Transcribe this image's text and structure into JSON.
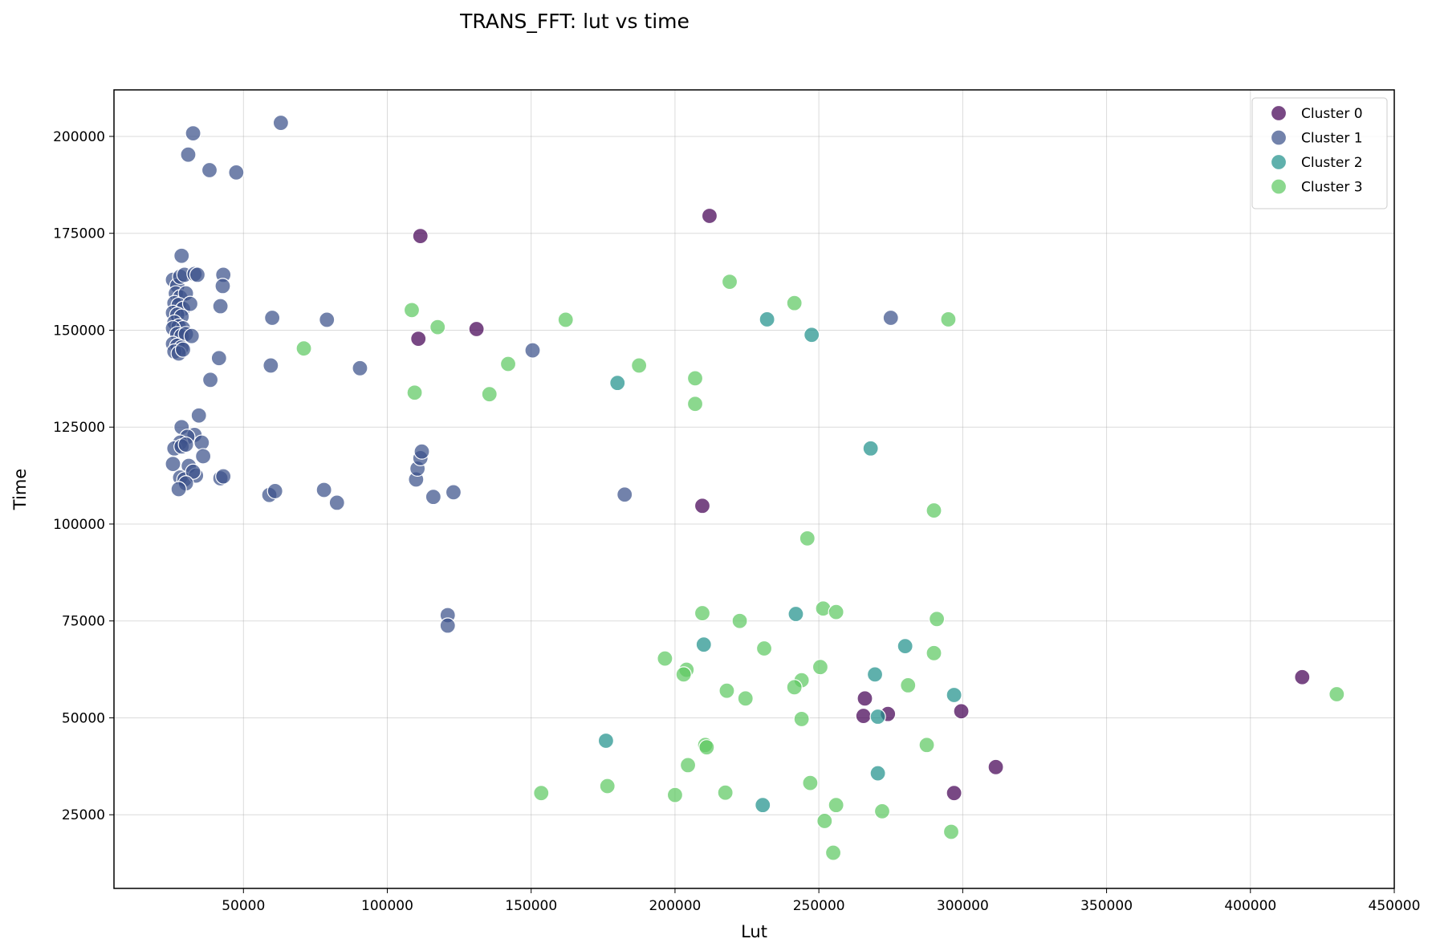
{
  "chart_data": {
    "type": "scatter",
    "title": "TRANS_FFT: lut vs time",
    "xlabel": "Lut",
    "ylabel": "Time",
    "xlim": [
      5000,
      450000
    ],
    "ylim": [
      6000,
      212000
    ],
    "xticks": [
      50000,
      100000,
      150000,
      200000,
      250000,
      300000,
      350000,
      400000,
      450000
    ],
    "xtick_labels": [
      "50000",
      "100000",
      "150000",
      "200000",
      "250000",
      "300000",
      "350000",
      "400000",
      "450000"
    ],
    "yticks": [
      25000,
      50000,
      75000,
      100000,
      125000,
      150000,
      175000,
      200000
    ],
    "ytick_labels": [
      "25000",
      "50000",
      "75000",
      "100000",
      "125000",
      "150000",
      "175000",
      "200000"
    ],
    "grid": true,
    "legend_position": "top-right",
    "series": [
      {
        "name": "Cluster 0",
        "color": "#440154",
        "points": [
          [
            212000,
            179500
          ],
          [
            111500,
            174300
          ],
          [
            110800,
            147800
          ],
          [
            131000,
            150300
          ],
          [
            209500,
            104700
          ],
          [
            418000,
            60500
          ],
          [
            266000,
            55000
          ],
          [
            265500,
            50500
          ],
          [
            274000,
            51000
          ],
          [
            299500,
            51700
          ],
          [
            311500,
            37300
          ],
          [
            297000,
            30600
          ]
        ]
      },
      {
        "name": "Cluster 1",
        "color": "#3b528b",
        "points": [
          [
            63000,
            203500
          ],
          [
            32500,
            200800
          ],
          [
            30800,
            195300
          ],
          [
            38200,
            191300
          ],
          [
            47500,
            190700
          ],
          [
            28500,
            169200
          ],
          [
            25500,
            163000
          ],
          [
            27000,
            161500
          ],
          [
            28000,
            163800
          ],
          [
            29500,
            164300
          ],
          [
            33000,
            164500
          ],
          [
            34000,
            164300
          ],
          [
            43000,
            164300
          ],
          [
            42800,
            161400
          ],
          [
            26500,
            159500
          ],
          [
            28000,
            158500
          ],
          [
            30000,
            159500
          ],
          [
            26000,
            157000
          ],
          [
            27500,
            156500
          ],
          [
            29000,
            155500
          ],
          [
            31500,
            156800
          ],
          [
            42000,
            156200
          ],
          [
            25500,
            154500
          ],
          [
            27000,
            154000
          ],
          [
            28500,
            153500
          ],
          [
            26000,
            152000
          ],
          [
            27500,
            151000
          ],
          [
            29000,
            150500
          ],
          [
            25500,
            150500
          ],
          [
            27000,
            149000
          ],
          [
            28500,
            148500
          ],
          [
            30000,
            149000
          ],
          [
            32000,
            148500
          ],
          [
            25500,
            146500
          ],
          [
            27000,
            146000
          ],
          [
            28500,
            145500
          ],
          [
            26000,
            144500
          ],
          [
            27500,
            144000
          ],
          [
            29000,
            145000
          ],
          [
            60000,
            153200
          ],
          [
            79000,
            152700
          ],
          [
            41500,
            142800
          ],
          [
            59500,
            140900
          ],
          [
            38500,
            137200
          ],
          [
            90500,
            140200
          ],
          [
            150500,
            144800
          ],
          [
            275000,
            153200
          ],
          [
            34500,
            128000
          ],
          [
            28500,
            125000
          ],
          [
            33000,
            123000
          ],
          [
            30500,
            122500
          ],
          [
            28000,
            121000
          ],
          [
            26000,
            119500
          ],
          [
            28500,
            120000
          ],
          [
            30000,
            120500
          ],
          [
            35500,
            121000
          ],
          [
            36000,
            117500
          ],
          [
            25500,
            115500
          ],
          [
            31000,
            115000
          ],
          [
            28000,
            112000
          ],
          [
            29500,
            111500
          ],
          [
            33500,
            112500
          ],
          [
            32500,
            113500
          ],
          [
            30000,
            110500
          ],
          [
            42000,
            111800
          ],
          [
            43000,
            112300
          ],
          [
            27500,
            109000
          ],
          [
            59000,
            107500
          ],
          [
            61000,
            108500
          ],
          [
            78000,
            108800
          ],
          [
            82500,
            105500
          ],
          [
            110000,
            111500
          ],
          [
            110500,
            114300
          ],
          [
            111500,
            117000
          ],
          [
            112000,
            118700
          ],
          [
            116000,
            107000
          ],
          [
            123000,
            108200
          ],
          [
            182500,
            107600
          ],
          [
            121000,
            76500
          ],
          [
            121000,
            73800
          ]
        ]
      },
      {
        "name": "Cluster 2",
        "color": "#21918c",
        "points": [
          [
            232000,
            152800
          ],
          [
            247500,
            148800
          ],
          [
            180000,
            136400
          ],
          [
            268000,
            119500
          ],
          [
            242000,
            76800
          ],
          [
            210000,
            68900
          ],
          [
            280000,
            68500
          ],
          [
            269500,
            61200
          ],
          [
            297000,
            55900
          ],
          [
            270500,
            50300
          ],
          [
            176000,
            44100
          ],
          [
            270500,
            35700
          ],
          [
            230500,
            27500
          ]
        ]
      },
      {
        "name": "Cluster 3",
        "color": "#5ec962",
        "points": [
          [
            219000,
            162500
          ],
          [
            241500,
            157000
          ],
          [
            108500,
            155200
          ],
          [
            117500,
            150800
          ],
          [
            162000,
            152700
          ],
          [
            295000,
            152800
          ],
          [
            71000,
            145300
          ],
          [
            142000,
            141300
          ],
          [
            187500,
            140900
          ],
          [
            207000,
            137600
          ],
          [
            109500,
            133900
          ],
          [
            135500,
            133500
          ],
          [
            207000,
            131000
          ],
          [
            290000,
            103500
          ],
          [
            246000,
            96300
          ],
          [
            251500,
            78200
          ],
          [
            256000,
            77300
          ],
          [
            209500,
            77000
          ],
          [
            222500,
            75000
          ],
          [
            291000,
            75500
          ],
          [
            196500,
            65300
          ],
          [
            231000,
            67900
          ],
          [
            204000,
            62400
          ],
          [
            203000,
            61200
          ],
          [
            250500,
            63100
          ],
          [
            290000,
            66700
          ],
          [
            244000,
            59700
          ],
          [
            241500,
            57900
          ],
          [
            218000,
            57000
          ],
          [
            224500,
            55000
          ],
          [
            281000,
            58400
          ],
          [
            244000,
            49700
          ],
          [
            287500,
            43000
          ],
          [
            210500,
            43000
          ],
          [
            211000,
            42400
          ],
          [
            204500,
            37800
          ],
          [
            176500,
            32400
          ],
          [
            153500,
            30600
          ],
          [
            200000,
            30100
          ],
          [
            217500,
            30700
          ],
          [
            247000,
            33200
          ],
          [
            256000,
            27500
          ],
          [
            272000,
            25900
          ],
          [
            252000,
            23400
          ],
          [
            296000,
            20600
          ],
          [
            255000,
            15200
          ],
          [
            430000,
            56100
          ]
        ]
      }
    ]
  }
}
